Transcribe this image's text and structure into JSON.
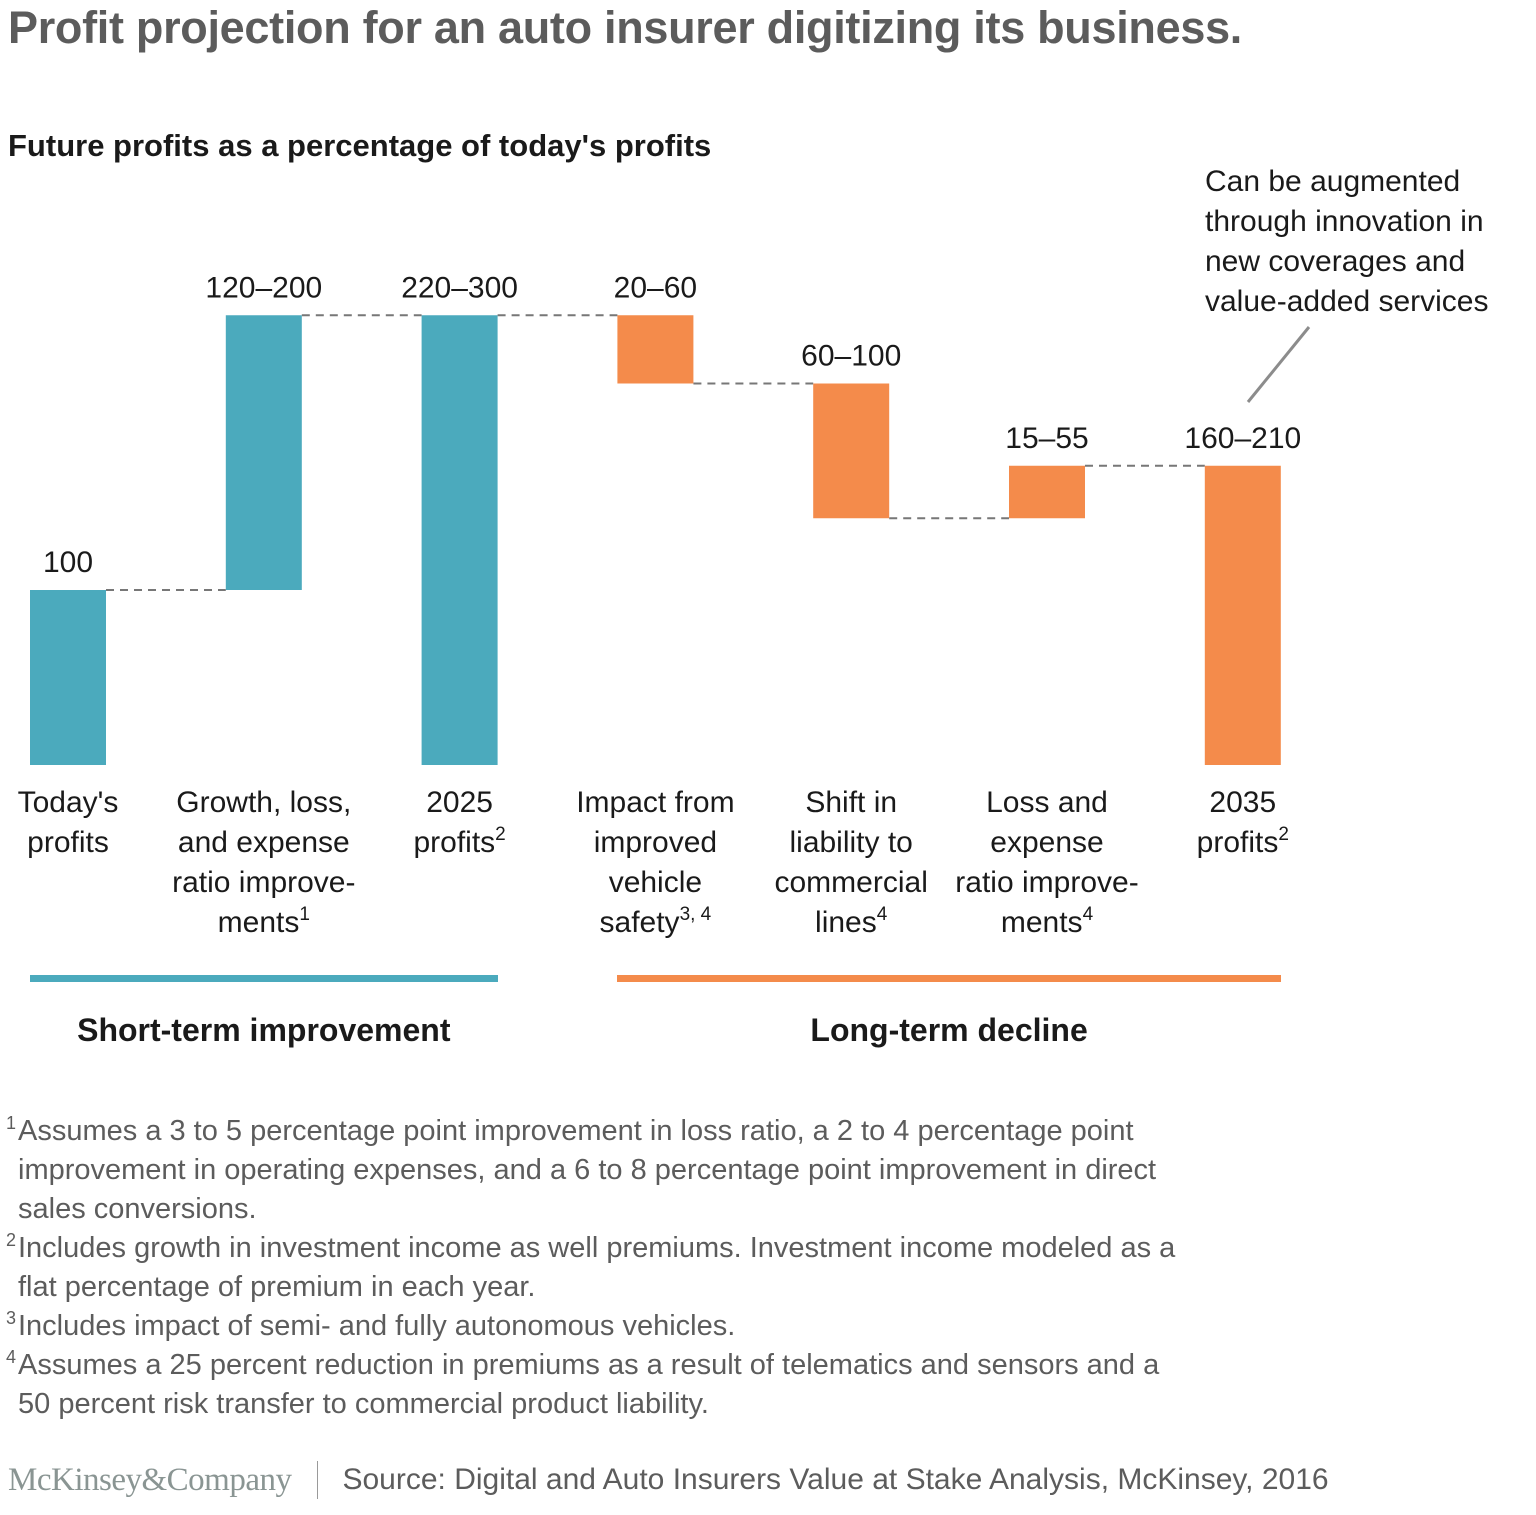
{
  "title": "Profit projection for an auto insurer digitizing its business.",
  "subtitle": "Future profits as a percentage of today's profits",
  "annotation": "Can be augmented\nthrough innovation in\nnew coverages and\nvalue-added services",
  "colors": {
    "short_term": "#4baabd",
    "long_term": "#f48b4b",
    "connector": "#777777",
    "annotation_line": "#8c8c8c"
  },
  "chart_data": {
    "type": "bar",
    "subtype": "waterfall",
    "title": "Future profits as a percentage of today's profits",
    "xlabel": "",
    "ylabel": "",
    "ylim": [
      0,
      260
    ],
    "grid": false,
    "categories": [
      "Today's profits",
      "Growth, loss, and expense ratio improvements",
      "2025 profits",
      "Impact from improved vehicle safety",
      "Shift in liability to commercial lines",
      "Loss and expense ratio improvements",
      "2035 profits"
    ],
    "bars": [
      {
        "name": "Today's profits",
        "kind": "total",
        "value": 100,
        "range_label": "100",
        "group": "short_term",
        "label_lines": [
          "Today's",
          "profits"
        ],
        "footnote": ""
      },
      {
        "name": "Growth, loss, and expense ratio improvements",
        "kind": "delta",
        "value": 157,
        "range_label": "120–200",
        "range": [
          120,
          200
        ],
        "group": "short_term",
        "label_lines": [
          "Growth, loss,",
          "and expense",
          "ratio improve-",
          "ments"
        ],
        "footnote": "1"
      },
      {
        "name": "2025 profits",
        "kind": "total",
        "value": 257,
        "range_label": "220–300",
        "range": [
          220,
          300
        ],
        "group": "short_term",
        "label_lines": [
          "2025",
          "profits"
        ],
        "footnote": "2"
      },
      {
        "name": "Impact from improved vehicle safety",
        "kind": "delta",
        "value": -39,
        "range_label": "20–60",
        "range": [
          20,
          60
        ],
        "group": "long_term",
        "label_lines": [
          "Impact from",
          "improved",
          "vehicle",
          "safety"
        ],
        "footnote": "3, 4"
      },
      {
        "name": "Shift in liability to commercial lines",
        "kind": "delta",
        "value": -77,
        "range_label": "60–100",
        "range": [
          60,
          100
        ],
        "group": "long_term",
        "label_lines": [
          "Shift in",
          "liability to",
          "commercial",
          "lines"
        ],
        "footnote": "4"
      },
      {
        "name": "Loss and expense ratio improvements",
        "kind": "delta",
        "value": 30,
        "range_label": "15–55",
        "range": [
          15,
          55
        ],
        "group": "long_term",
        "label_lines": [
          "Loss and",
          "expense",
          "ratio improve-",
          "ments"
        ],
        "footnote": "4"
      },
      {
        "name": "2035 profits",
        "kind": "total",
        "value": 171,
        "range_label": "160–210",
        "range": [
          160,
          210
        ],
        "group": "long_term",
        "label_lines": [
          "2035",
          "profits"
        ],
        "footnote": "2"
      }
    ],
    "groups": [
      {
        "id": "short_term",
        "label": "Short-term improvement"
      },
      {
        "id": "long_term",
        "label": "Long-term decline"
      }
    ]
  },
  "footnotes": [
    {
      "num": "1",
      "text": "Assumes a 3 to 5 percentage point improvement in loss ratio, a 2 to 4 percentage point\nimprovement in operating expenses, and a  6 to 8 percentage point improvement in direct\nsales conversions."
    },
    {
      "num": "2",
      "text": "Includes growth in investment income as well premiums. Investment income modeled as a\nflat percentage of premium in each year."
    },
    {
      "num": "3",
      "text": "Includes impact of semi- and fully autonomous vehicles."
    },
    {
      "num": "4",
      "text": "Assumes a 25 percent reduction in premiums as a result of telematics and sensors and a\n50 percent risk transfer to commercial product liability."
    }
  ],
  "footer": {
    "logo": "McKinsey&Company",
    "source": "Source: Digital and Auto Insurers Value at Stake Analysis, McKinsey, 2016"
  }
}
